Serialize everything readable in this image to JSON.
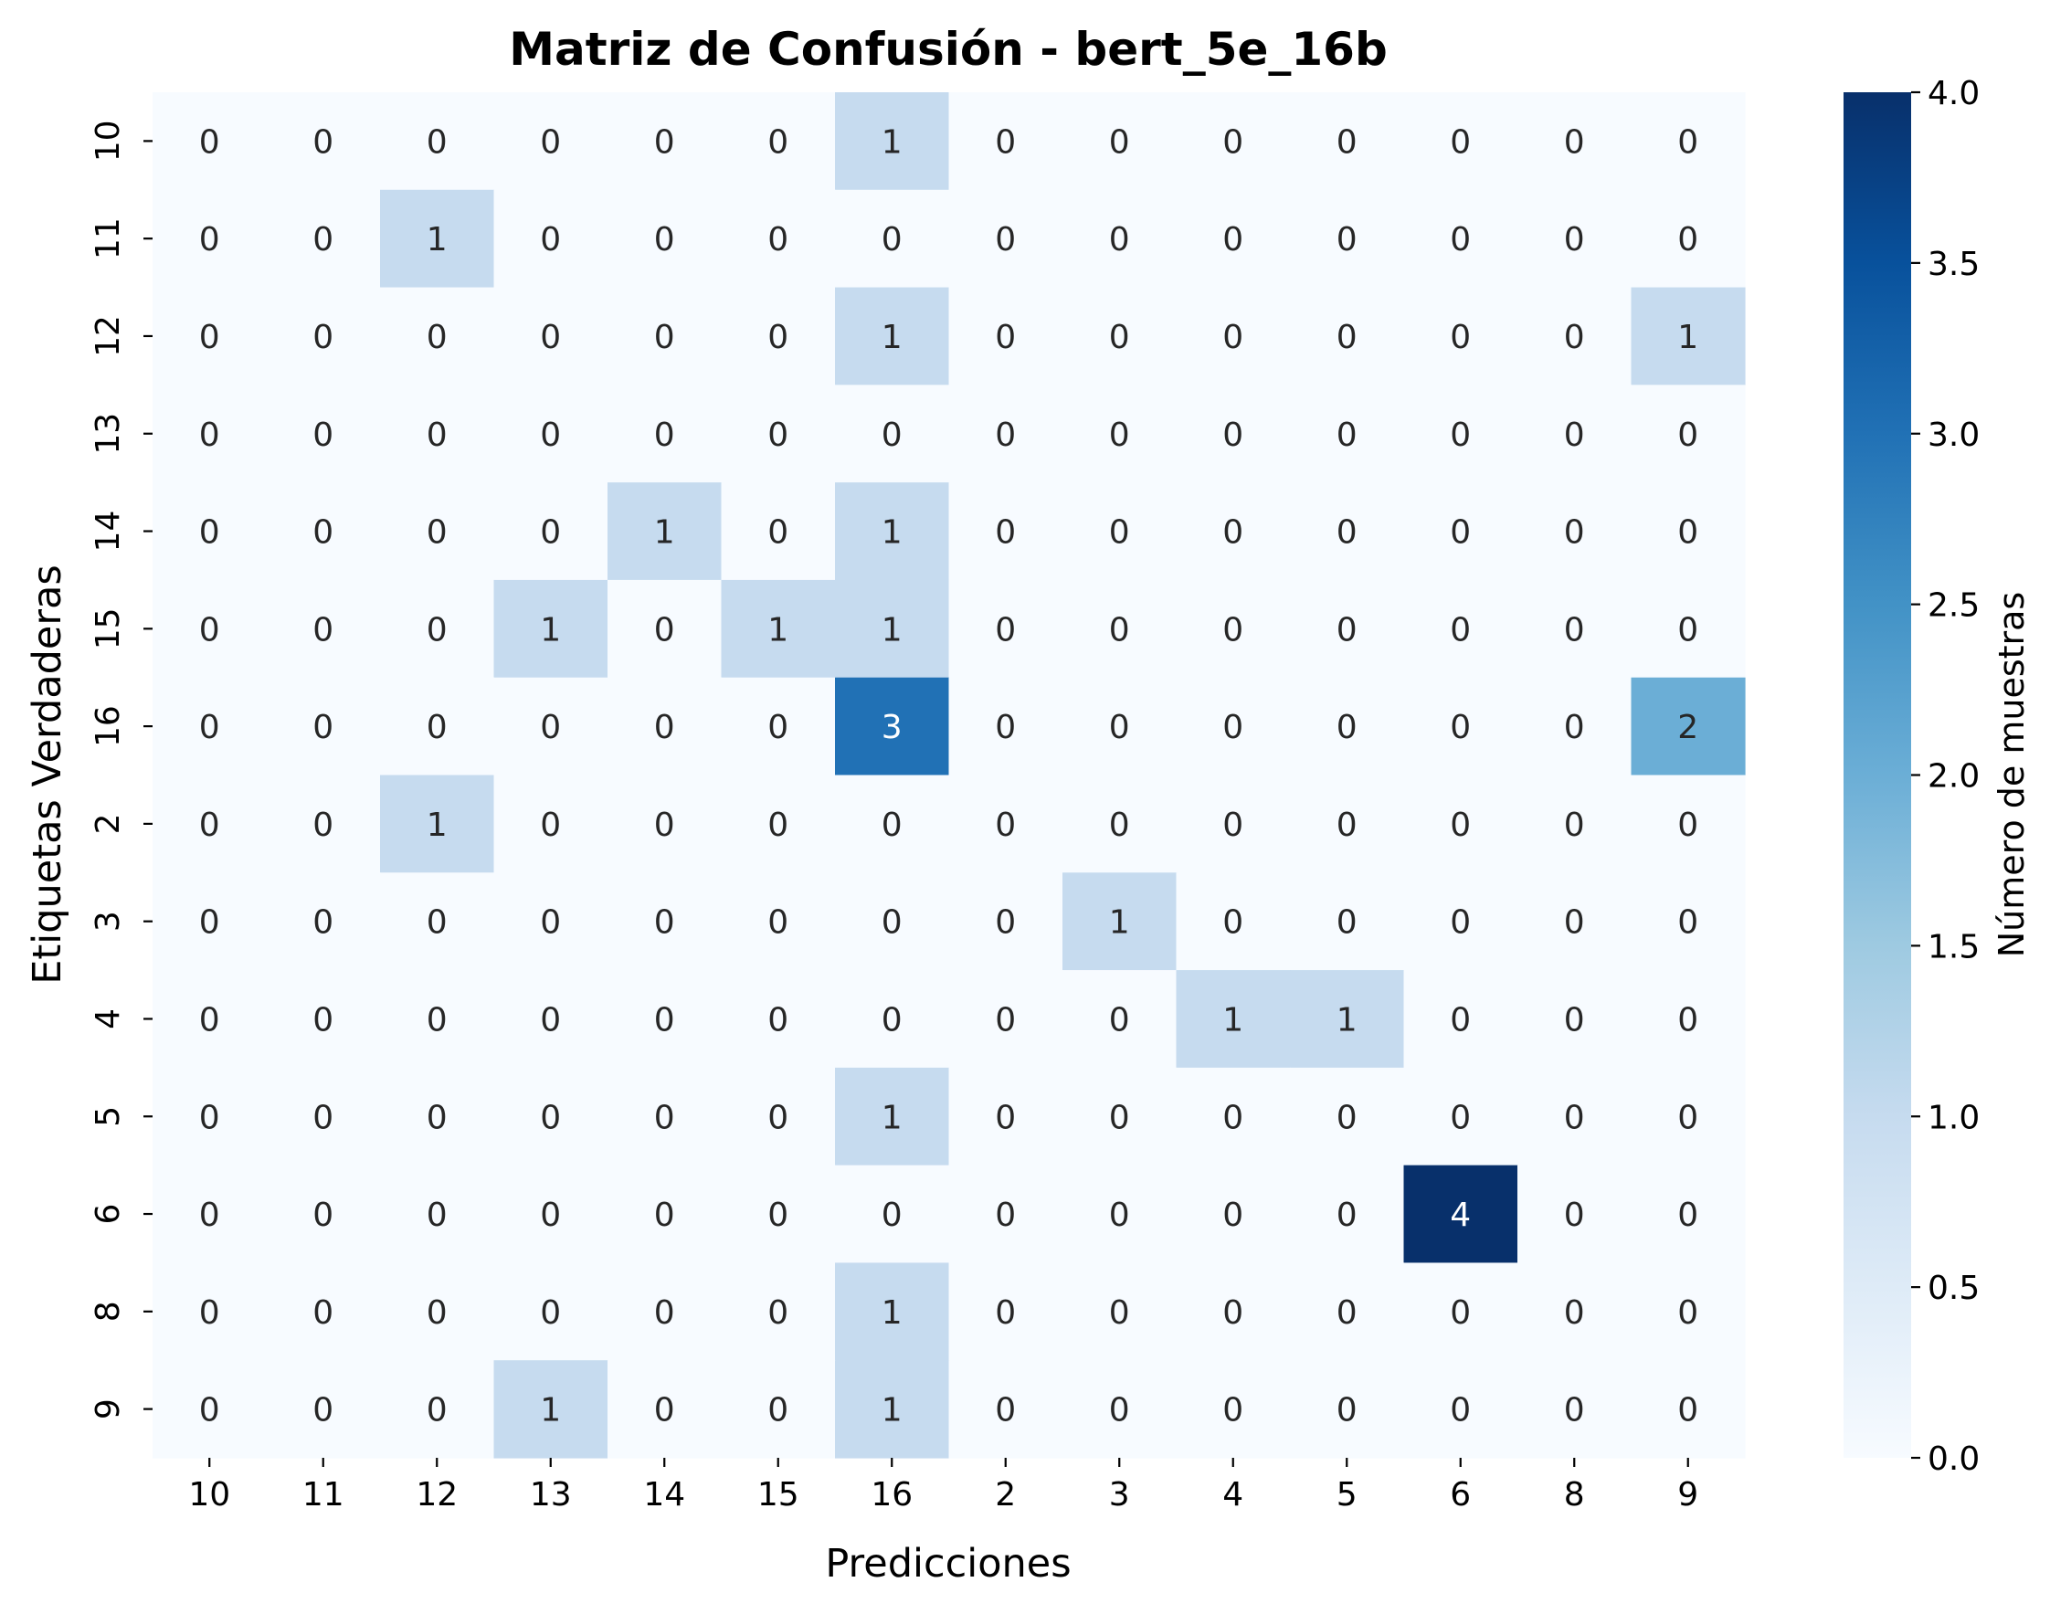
{
  "chart_data": {
    "type": "heatmap",
    "title": "Matriz de Confusión - bert_5e_16b",
    "xlabel": "Predicciones",
    "ylabel": "Etiquetas Verdaderas",
    "colorbar_label": "Número de muestras",
    "x_categories": [
      "10",
      "11",
      "12",
      "13",
      "14",
      "15",
      "16",
      "2",
      "3",
      "4",
      "5",
      "6",
      "8",
      "9"
    ],
    "y_categories": [
      "10",
      "11",
      "12",
      "13",
      "14",
      "15",
      "16",
      "2",
      "3",
      "4",
      "5",
      "6",
      "8",
      "9"
    ],
    "values": [
      [
        0,
        0,
        0,
        0,
        0,
        0,
        1,
        0,
        0,
        0,
        0,
        0,
        0,
        0
      ],
      [
        0,
        0,
        1,
        0,
        0,
        0,
        0,
        0,
        0,
        0,
        0,
        0,
        0,
        0
      ],
      [
        0,
        0,
        0,
        0,
        0,
        0,
        1,
        0,
        0,
        0,
        0,
        0,
        0,
        1
      ],
      [
        0,
        0,
        0,
        0,
        0,
        0,
        0,
        0,
        0,
        0,
        0,
        0,
        0,
        0
      ],
      [
        0,
        0,
        0,
        0,
        1,
        0,
        1,
        0,
        0,
        0,
        0,
        0,
        0,
        0
      ],
      [
        0,
        0,
        0,
        1,
        0,
        1,
        1,
        0,
        0,
        0,
        0,
        0,
        0,
        0
      ],
      [
        0,
        0,
        0,
        0,
        0,
        0,
        3,
        0,
        0,
        0,
        0,
        0,
        0,
        2
      ],
      [
        0,
        0,
        1,
        0,
        0,
        0,
        0,
        0,
        0,
        0,
        0,
        0,
        0,
        0
      ],
      [
        0,
        0,
        0,
        0,
        0,
        0,
        0,
        0,
        1,
        0,
        0,
        0,
        0,
        0
      ],
      [
        0,
        0,
        0,
        0,
        0,
        0,
        0,
        0,
        0,
        1,
        1,
        0,
        0,
        0
      ],
      [
        0,
        0,
        0,
        0,
        0,
        0,
        1,
        0,
        0,
        0,
        0,
        0,
        0,
        0
      ],
      [
        0,
        0,
        0,
        0,
        0,
        0,
        0,
        0,
        0,
        0,
        0,
        4,
        0,
        0
      ],
      [
        0,
        0,
        0,
        0,
        0,
        0,
        1,
        0,
        0,
        0,
        0,
        0,
        0,
        0
      ],
      [
        0,
        0,
        0,
        1,
        0,
        0,
        1,
        0,
        0,
        0,
        0,
        0,
        0,
        0
      ]
    ],
    "colorbar": {
      "range": [
        0.0,
        4.0
      ],
      "ticks": [
        "0.0",
        "0.5",
        "1.0",
        "1.5",
        "2.0",
        "2.5",
        "3.0",
        "3.5",
        "4.0"
      ],
      "colormap": "Blues"
    },
    "colors": {
      "low": "#f7fbff",
      "high": "#08306b",
      "text_dark": "#262626",
      "text_light": "#ffffff"
    }
  }
}
